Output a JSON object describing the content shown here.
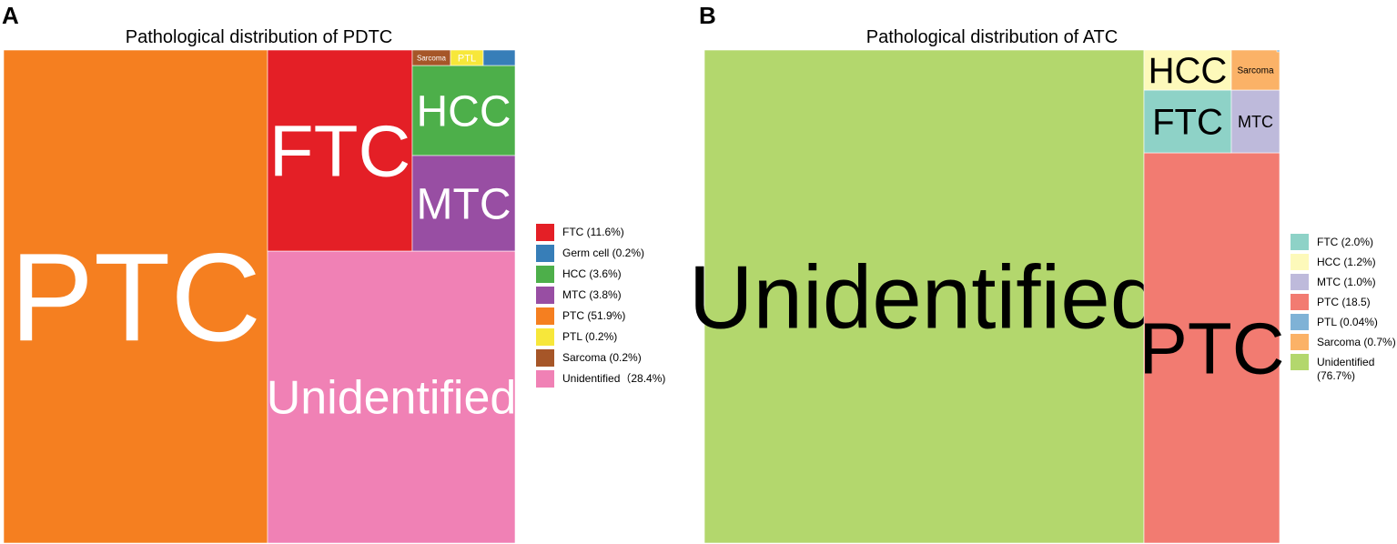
{
  "panels": [
    {
      "letter": "A"
    },
    {
      "letter": "B"
    }
  ],
  "chart_data": [
    {
      "type": "treemap",
      "title": "Pathological distribution of PDTC",
      "categories": [
        "PTC",
        "Unidentified",
        "FTC",
        "HCC",
        "MTC",
        "Sarcoma",
        "PTL",
        "Germ cell"
      ],
      "values": [
        51.9,
        28.4,
        11.6,
        3.6,
        3.8,
        0.2,
        0.2,
        0.2
      ],
      "unit": "%",
      "colors": {
        "PTC": "#f57f20",
        "Unidentified": "#f081b5",
        "FTC": "#e41f26",
        "HCC": "#4daf4a",
        "MTC": "#984ea3",
        "Sarcoma": "#a65628",
        "PTL": "#f7e73a",
        "Germ cell": "#377eb8"
      },
      "tile_label_color": "#ffffff",
      "legend": {
        "position": "right",
        "entries": [
          {
            "label": "FTC (11.6%)",
            "color": "#e41f26"
          },
          {
            "label": "Germ cell (0.2%)",
            "color": "#377eb8"
          },
          {
            "label": "HCC (3.6%)",
            "color": "#4daf4a"
          },
          {
            "label": "MTC (3.8%)",
            "color": "#984ea3"
          },
          {
            "label": "PTC (51.9%)",
            "color": "#f57f20"
          },
          {
            "label": "PTL (0.2%)",
            "color": "#f7e73a"
          },
          {
            "label": "Sarcoma (0.2%)",
            "color": "#a65628"
          },
          {
            "label": "Unidentified（28.4%)",
            "color": "#f081b5"
          }
        ]
      }
    },
    {
      "type": "treemap",
      "title": "Pathological distribution of ATC",
      "categories": [
        "Unidentified",
        "PTC",
        "FTC",
        "HCC",
        "MTC",
        "Sarcoma",
        "PTL"
      ],
      "values": [
        76.7,
        18.5,
        2.0,
        1.2,
        1.0,
        0.7,
        0.04
      ],
      "unit": "%",
      "colors": {
        "Unidentified": "#b3d76d",
        "PTC": "#f27b71",
        "FTC": "#8ed2c7",
        "HCC": "#fdf9ba",
        "MTC": "#bebadb",
        "Sarcoma": "#fbb267",
        "PTL": "#7fb2d6"
      },
      "tile_label_color": "#000000",
      "legend": {
        "position": "right",
        "entries": [
          {
            "label": "FTC (2.0%)",
            "color": "#8ed2c7"
          },
          {
            "label": "HCC (1.2%)",
            "color": "#fdf9ba"
          },
          {
            "label": "MTC (1.0%)",
            "color": "#bebadb"
          },
          {
            "label": "PTC (18.5)",
            "color": "#f27b71"
          },
          {
            "label": "PTL (0.04%)",
            "color": "#7fb2d6"
          },
          {
            "label": "Sarcoma (0.7%)",
            "color": "#fbb267"
          },
          {
            "label": "Unidentified (76.7%)",
            "color": "#b3d76d"
          }
        ]
      }
    }
  ]
}
